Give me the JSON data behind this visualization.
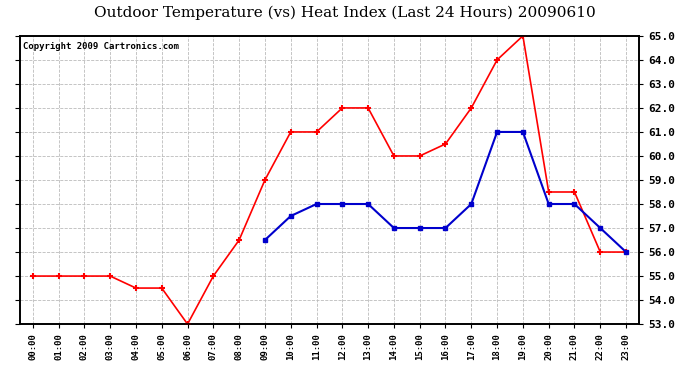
{
  "title": "Outdoor Temperature (vs) Heat Index (Last 24 Hours) 20090610",
  "copyright": "Copyright 2009 Cartronics.com",
  "hours": [
    "00:00",
    "01:00",
    "02:00",
    "03:00",
    "04:00",
    "05:00",
    "06:00",
    "07:00",
    "08:00",
    "09:00",
    "10:00",
    "11:00",
    "12:00",
    "13:00",
    "14:00",
    "15:00",
    "16:00",
    "17:00",
    "18:00",
    "19:00",
    "20:00",
    "21:00",
    "22:00",
    "23:00"
  ],
  "red_values": [
    55.0,
    55.0,
    55.0,
    55.0,
    54.5,
    54.5,
    53.0,
    55.0,
    56.5,
    59.0,
    61.0,
    61.0,
    62.0,
    62.0,
    60.0,
    60.0,
    60.5,
    62.0,
    64.0,
    65.0,
    58.5,
    58.5,
    56.0,
    56.0
  ],
  "blue_values": [
    null,
    null,
    null,
    null,
    null,
    null,
    null,
    null,
    null,
    56.5,
    57.5,
    58.0,
    58.0,
    58.0,
    57.0,
    57.0,
    57.0,
    58.0,
    61.0,
    61.0,
    58.0,
    58.0,
    57.0,
    56.0
  ],
  "ylim": [
    53.0,
    65.0
  ],
  "yticks": [
    53.0,
    54.0,
    55.0,
    56.0,
    57.0,
    58.0,
    59.0,
    60.0,
    61.0,
    62.0,
    63.0,
    64.0,
    65.0
  ],
  "red_color": "#ff0000",
  "blue_color": "#0000cc",
  "bg_color": "#ffffff",
  "plot_bg": "#ffffff",
  "grid_color": "#bbbbbb",
  "title_fontsize": 11,
  "copyright_fontsize": 6.5
}
